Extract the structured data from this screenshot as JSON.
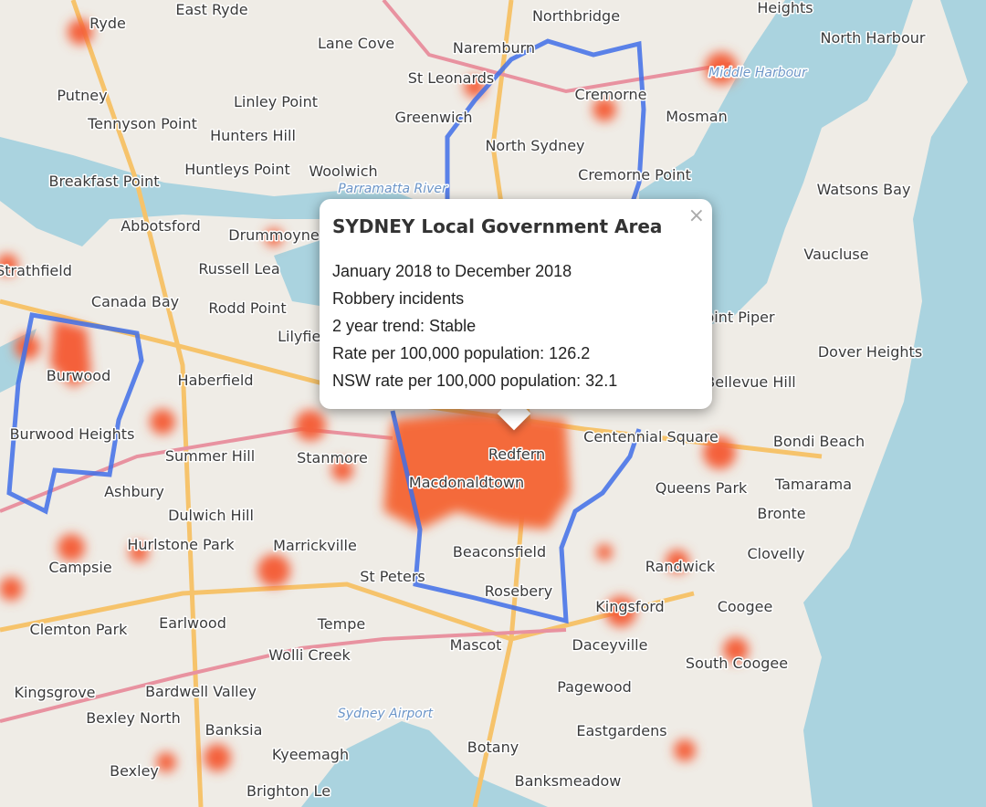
{
  "popup": {
    "title": "SYDNEY Local Government Area",
    "close": "×",
    "lines": [
      "January 2018 to December 2018",
      "Robbery incidents",
      "2 year trend: Stable",
      "Rate per 100,000 population: 126.2",
      "NSW rate per 100,000 population: 32.1"
    ]
  },
  "places": [
    "East Ryde",
    "Ryde",
    "Putney",
    "Tennyson Point",
    "Lane Cove",
    "Naremburn",
    "Northbridge",
    "Heights",
    "North Harbour",
    "St Leonards",
    "Cremorne",
    "Middle Harbour",
    "Mosman",
    "Linley Point",
    "Greenwich",
    "North Sydney",
    "Hunters Hill",
    "Huntleys Point",
    "Woolwich",
    "Parramatta River",
    "Cremorne Point",
    "Breakfast Point",
    "Watsons Bay",
    "Abbotsford",
    "Drummoyne",
    "Vaucluse",
    "Strathfield",
    "Russell Lea",
    "Rodd Point",
    "Canada Bay",
    "Point Piper",
    "Lilyfield",
    "Dover Heights",
    "Burwood",
    "Haberfield",
    "Bellevue Hill",
    "Burwood Heights",
    "Centennial Square",
    "Summer Hill",
    "Stanmore",
    "Redfern",
    "Bondi Beach",
    "Macdonaldtown",
    "Queens Park",
    "Tamarama",
    "Ashbury",
    "Bronte",
    "Dulwich Hill",
    "Hurlstone Park",
    "Marrickville",
    "Beaconsfield",
    "Clovelly",
    "Campsie",
    "Randwick",
    "St Peters",
    "Rosebery",
    "Kingsford",
    "Coogee",
    "Clemton Park",
    "Earlwood",
    "Tempe",
    "Mascot",
    "Daceyville",
    "South Coogee",
    "Wolli Creek",
    "Kingsgrove",
    "Bardwell Valley",
    "Pagewood",
    "Sydney Airport",
    "Bexley North",
    "Banksia",
    "Eastgardens",
    "Kyeemagh",
    "Botany",
    "Bexley",
    "Brighton Le",
    "Banksmeadow"
  ]
}
